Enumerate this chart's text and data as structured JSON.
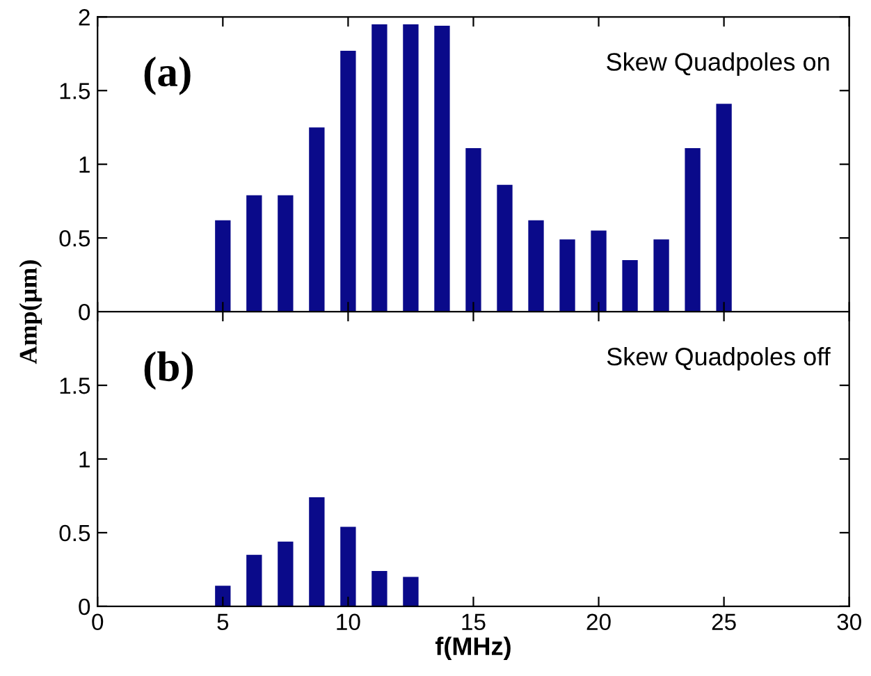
{
  "chart_data": [
    {
      "type": "bar",
      "ylabel": "Amp(μm)",
      "annotations": [
        "(a)",
        "Skew Quadpoles on"
      ],
      "x": [
        5,
        6.25,
        7.5,
        8.75,
        10,
        11.25,
        12.5,
        13.75,
        15,
        16.25,
        17.5,
        18.75,
        20,
        21.25,
        22.5,
        23.75,
        25
      ],
      "series": [
        {
          "color": "#0a0a8a",
          "values": [
            0.62,
            0.79,
            0.79,
            1.25,
            1.77,
            1.95,
            1.95,
            1.94,
            1.11,
            0.86,
            0.62,
            0.49,
            0.55,
            0.35,
            0.49,
            1.11,
            1.41
          ]
        }
      ],
      "xlim": [
        0,
        30
      ],
      "xticks": [
        {
          "value": 0,
          "label": null
        },
        {
          "value": 5,
          "label": null
        },
        {
          "value": 10,
          "label": null
        },
        {
          "value": 15,
          "label": null
        },
        {
          "value": 20,
          "label": null
        },
        {
          "value": 25,
          "label": null
        },
        {
          "value": 30,
          "label": null
        }
      ],
      "ylim": [
        0,
        2
      ],
      "yticks": [
        0,
        0.5,
        1,
        1.5,
        2
      ],
      "tick_labels": "y",
      "grid": false,
      "legend": false
    },
    {
      "type": "bar",
      "xlabel": "f(MHz)",
      "annotations": [
        "(b)",
        "Skew Quadpoles off"
      ],
      "x": [
        5,
        6.25,
        7.5,
        8.75,
        10,
        11.25,
        12.5
      ],
      "series": [
        {
          "color": "#0a0a8a",
          "values": [
            0.14,
            0.35,
            0.44,
            0.74,
            0.54,
            0.24,
            0.2
          ]
        }
      ],
      "xlim": [
        0,
        30
      ],
      "xticks": [
        0,
        5,
        10,
        15,
        20,
        25,
        30
      ],
      "ylim": [
        0,
        2
      ],
      "yticks": [
        0,
        0.5,
        1,
        1.5
      ],
      "grid": false,
      "legend": false
    }
  ]
}
